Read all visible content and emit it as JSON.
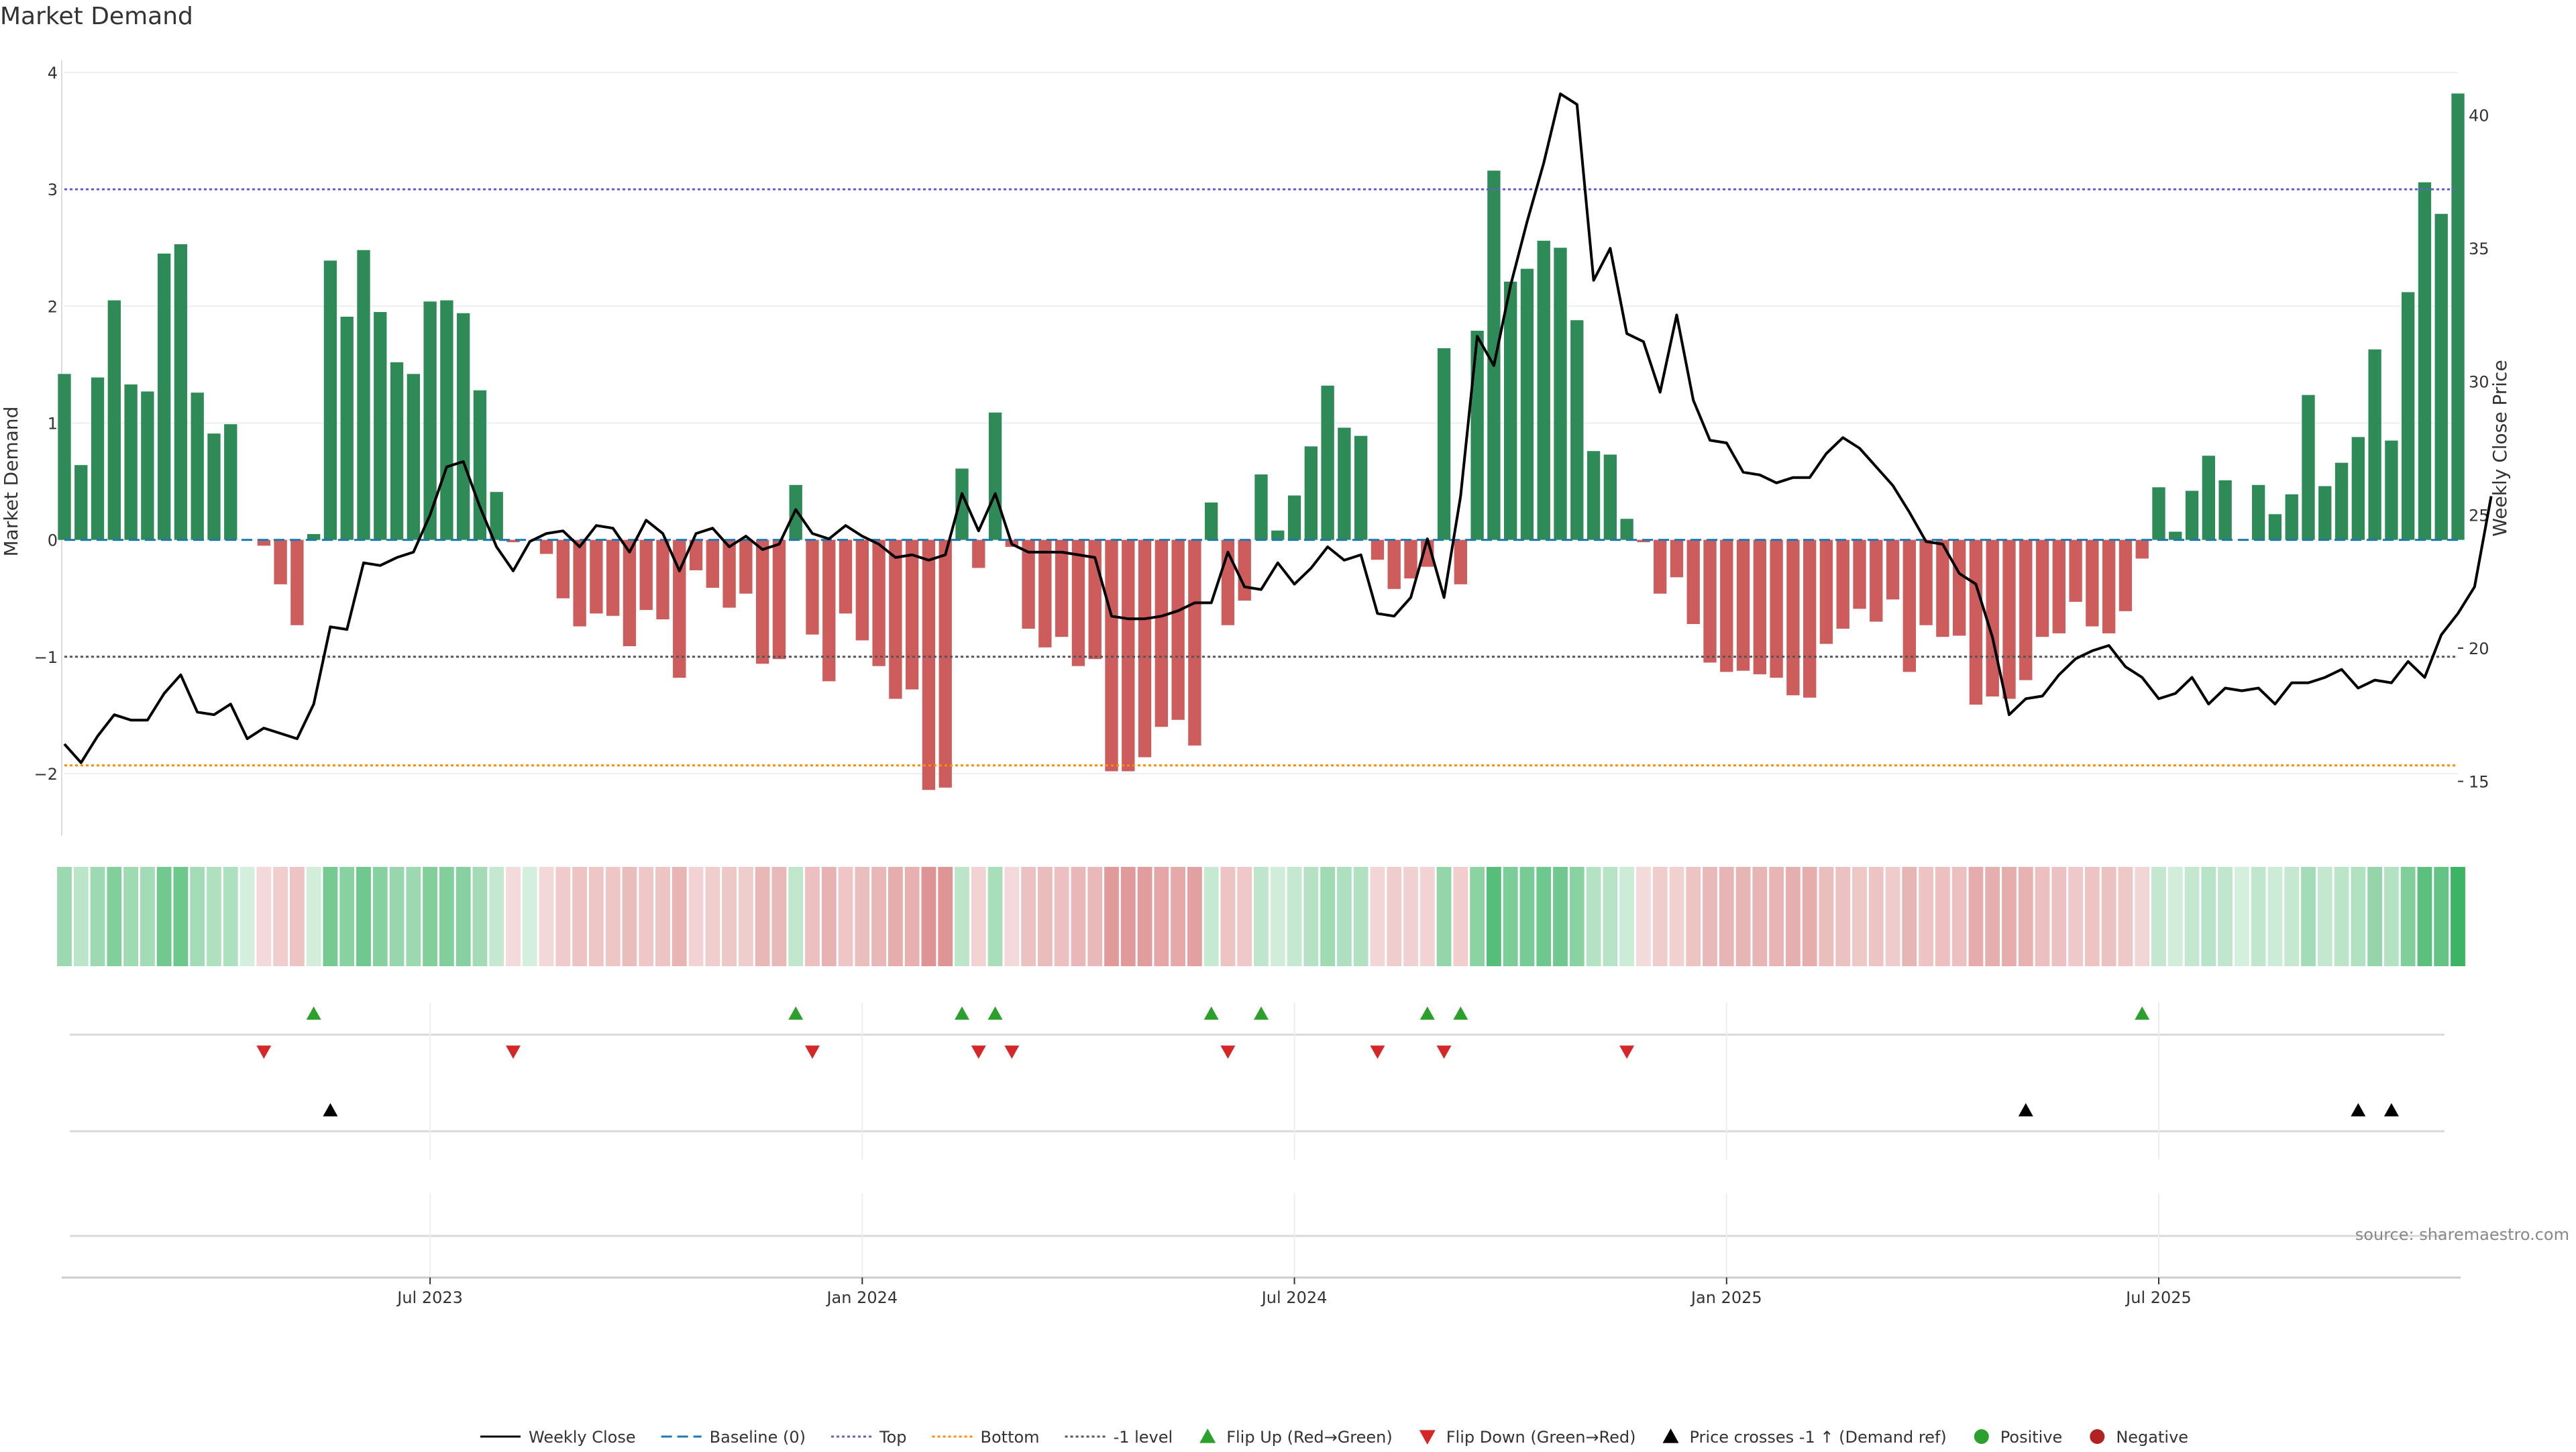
{
  "title": "Market Demand",
  "source": "source: sharemaestro.com",
  "colors": {
    "positive_bar": "#2e8b57",
    "negative_bar": "#cd5c5c",
    "price_line": "#000000",
    "baseline": "#1f77b4",
    "top_line": "#6a5acd",
    "bottom_line": "#ff8c00",
    "minus1_line": "#555555",
    "flip_up": "#2ca02c",
    "flip_down": "#d62728",
    "cross_up": "#000000",
    "strip_pos": "#3cb464",
    "strip_neg": "#cd5c5c",
    "grid": "#eeeeee"
  },
  "legend": [
    {
      "label": "Weekly Close",
      "kind": "line",
      "color": "#000000",
      "dash": ""
    },
    {
      "label": "Baseline (0)",
      "kind": "line",
      "color": "#1f77b4",
      "dash": "16,8"
    },
    {
      "label": "Top",
      "kind": "line",
      "color": "#6a5acd",
      "dash": "4,4"
    },
    {
      "label": "Bottom",
      "kind": "line",
      "color": "#ff8c00",
      "dash": "4,4"
    },
    {
      "label": "-1 level",
      "kind": "line",
      "color": "#555555",
      "dash": "4,4"
    },
    {
      "label": "Flip Up (Red→Green)",
      "kind": "tri-up",
      "color": "#2ca02c"
    },
    {
      "label": "Flip Down (Green→Red)",
      "kind": "tri-down",
      "color": "#d62728"
    },
    {
      "label": "Price crosses -1 ↑ (Demand ref)",
      "kind": "tri-up",
      "color": "#000000"
    },
    {
      "label": "Positive",
      "kind": "dot",
      "color": "#2ca02c"
    },
    {
      "label": "Negative",
      "kind": "dot",
      "color": "#b22222"
    }
  ],
  "chart_data": {
    "type": "bar",
    "title": "Market Demand",
    "ylabel": "Market Demand",
    "y2label": "Weekly Close Price",
    "ylim": [
      -2.5,
      4.0
    ],
    "y2lim": [
      13.1,
      41.6
    ],
    "yticks": [
      -2,
      -1,
      0,
      1,
      2,
      3,
      4
    ],
    "y2ticks": [
      15,
      20,
      25,
      30,
      35,
      40
    ],
    "x_start": "2023-01-23",
    "x_end": "2025-10-13",
    "xticks": [
      {
        "label": "Jul 2023",
        "week": 22
      },
      {
        "label": "Jan 2024",
        "week": 48
      },
      {
        "label": "Jul 2024",
        "week": 74
      },
      {
        "label": "Jan 2025",
        "week": 100
      },
      {
        "label": "Jul 2025",
        "week": 126
      }
    ],
    "levels": {
      "baseline": 0,
      "top": 3.0,
      "bottom": -1.93,
      "minus1": -1.0
    },
    "series": [
      {
        "name": "Market Demand",
        "values": [
          1.42,
          0.64,
          1.39,
          2.05,
          1.33,
          1.27,
          2.45,
          2.53,
          1.26,
          0.91,
          0.99,
          0.0,
          -0.05,
          -0.38,
          -0.73,
          0.05,
          2.39,
          1.91,
          2.48,
          1.95,
          1.52,
          1.42,
          2.04,
          2.05,
          1.94,
          1.28,
          0.41,
          -0.02,
          0.0,
          -0.12,
          -0.5,
          -0.74,
          -0.63,
          -0.65,
          -0.91,
          -0.6,
          -0.68,
          -1.18,
          -0.26,
          -0.41,
          -0.58,
          -0.46,
          -1.06,
          -1.02,
          0.47,
          -0.81,
          -1.21,
          -0.63,
          -0.86,
          -1.08,
          -1.36,
          -1.28,
          -2.14,
          -2.12,
          0.61,
          -0.24,
          1.09,
          -0.06,
          -0.76,
          -0.92,
          -0.83,
          -1.08,
          -1.02,
          -1.98,
          -1.98,
          -1.86,
          -1.6,
          -1.54,
          -1.76,
          0.32,
          -0.73,
          -0.52,
          0.56,
          0.08,
          0.38,
          0.8,
          1.32,
          0.96,
          0.89,
          -0.17,
          -0.42,
          -0.33,
          -0.23,
          1.64,
          -0.38,
          1.79,
          3.16,
          2.21,
          2.32,
          2.56,
          2.5,
          1.88,
          0.76,
          0.73,
          0.18,
          -0.02,
          -0.46,
          -0.32,
          -0.72,
          -1.05,
          -1.13,
          -1.12,
          -1.15,
          -1.18,
          -1.33,
          -1.35,
          -0.89,
          -0.76,
          -0.59,
          -0.7,
          -0.51,
          -1.13,
          -0.73,
          -0.83,
          -0.82,
          -1.41,
          -1.34,
          -1.36,
          -1.2,
          -0.83,
          -0.8,
          -0.53,
          -0.74,
          -0.8,
          -0.61,
          -0.16,
          0.45,
          0.07,
          0.42,
          0.72,
          0.51,
          0.0,
          0.47,
          0.22,
          0.39,
          1.24,
          0.46,
          0.66,
          0.88,
          1.63,
          0.85,
          2.12,
          3.06,
          2.79,
          3.82
        ]
      },
      {
        "name": "Weekly Close",
        "values": [
          16.4,
          15.7,
          16.7,
          17.5,
          17.3,
          17.3,
          18.3,
          19.0,
          17.6,
          17.5,
          17.9,
          16.6,
          17.0,
          16.8,
          16.6,
          17.9,
          20.8,
          20.7,
          23.2,
          23.1,
          23.4,
          23.6,
          25.0,
          26.8,
          27.0,
          25.3,
          23.8,
          22.9,
          24.0,
          24.3,
          24.4,
          23.8,
          24.6,
          24.5,
          23.6,
          24.8,
          24.3,
          22.9,
          24.3,
          24.5,
          23.8,
          24.2,
          23.7,
          23.9,
          25.2,
          24.3,
          24.1,
          24.6,
          24.2,
          23.9,
          23.4,
          23.5,
          23.3,
          23.5,
          25.8,
          24.4,
          25.8,
          23.9,
          23.6,
          23.6,
          23.6,
          23.5,
          23.4,
          21.2,
          21.1,
          21.1,
          21.2,
          21.4,
          21.7,
          21.7,
          23.6,
          22.3,
          22.2,
          23.2,
          22.4,
          23.0,
          23.8,
          23.3,
          23.5,
          21.3,
          21.2,
          21.9,
          24.1,
          21.9,
          25.7,
          31.7,
          30.6,
          33.6,
          36.0,
          38.2,
          40.8,
          40.4,
          33.8,
          35.0,
          31.8,
          31.5,
          29.6,
          32.5,
          29.3,
          27.8,
          27.7,
          26.6,
          26.5,
          26.2,
          26.4,
          26.4,
          27.3,
          27.9,
          27.5,
          26.8,
          26.1,
          25.1,
          24.0,
          23.9,
          22.8,
          22.4,
          20.4,
          17.5,
          18.1,
          18.2,
          19.0,
          19.6,
          19.9,
          20.1,
          19.3,
          18.9,
          18.1,
          18.3,
          18.9,
          17.9,
          18.5,
          18.4,
          18.5,
          17.9,
          18.7,
          18.7,
          18.9,
          19.2,
          18.5,
          18.8,
          18.7,
          19.5,
          18.9,
          20.5,
          21.3,
          22.3,
          25.7
        ]
      }
    ],
    "events": {
      "flip_up_weeks": [
        15,
        44,
        54,
        56,
        69,
        72,
        82,
        84,
        125
      ],
      "flip_down_weeks": [
        12,
        27,
        45,
        55,
        57,
        70,
        79,
        83,
        94
      ],
      "price_cross_weeks": [
        16,
        118,
        138,
        140
      ]
    }
  }
}
